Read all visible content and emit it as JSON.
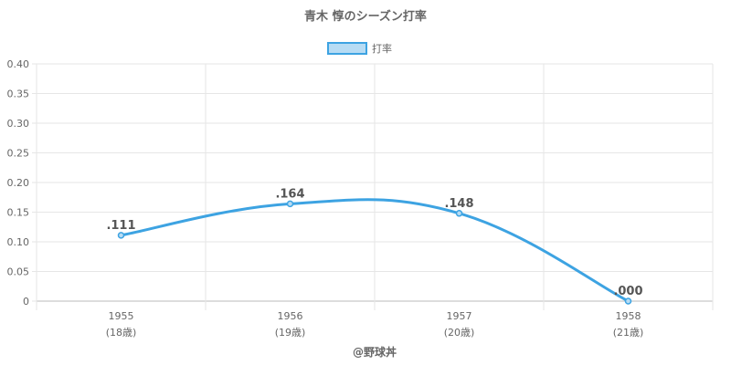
{
  "chart_data": {
    "type": "line",
    "title": "青木 惇のシーズン打率",
    "legend": {
      "label": "打率",
      "position": "top"
    },
    "categories": [
      "1955",
      "1956",
      "1957",
      "1958"
    ],
    "sublabels": [
      "(18歳)",
      "(19歳)",
      "(20歳)",
      "(21歳)"
    ],
    "series": [
      {
        "name": "打率",
        "values": [
          0.111,
          0.164,
          0.148,
          0.0
        ],
        "value_labels": [
          ".111",
          ".164",
          ".148",
          ".000"
        ],
        "color": "#3da3e2"
      }
    ],
    "ylim": [
      0,
      0.4
    ],
    "yticks": [
      0,
      0.05,
      0.1,
      0.15,
      0.2,
      0.25,
      0.3,
      0.35,
      0.4
    ],
    "ytick_labels": [
      "0",
      "0.05",
      "0.10",
      "0.15",
      "0.20",
      "0.25",
      "0.30",
      "0.35",
      "0.40"
    ],
    "grid": true,
    "credit": "@野球丼"
  }
}
